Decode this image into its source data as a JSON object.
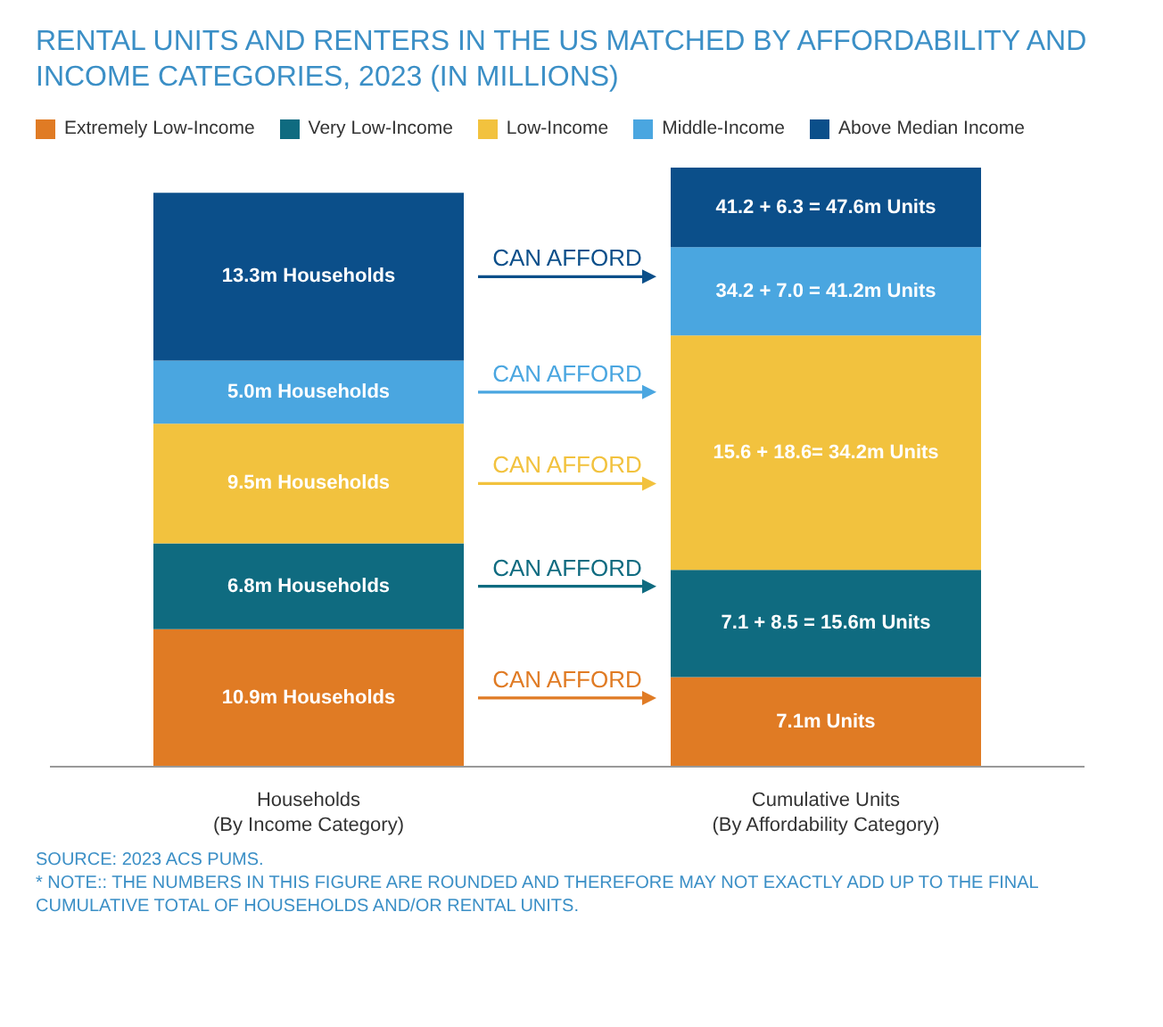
{
  "chart_data": {
    "type": "bar",
    "stacked": true,
    "title": "RENTAL UNITS AND RENTERS IN THE US MATCHED BY AFFORDABILITY AND INCOME CATEGORIES, 2023 (IN MILLIONS)",
    "categories": [
      "Households\n(By Income Category)",
      "Cumulative Units\n(By Affordability Category)"
    ],
    "series": [
      {
        "name": "Extremely Low-Income",
        "color": "#e07b24",
        "values": [
          10.9,
          7.1
        ],
        "value_labels": [
          "10.9m Households",
          "7.1m Units"
        ]
      },
      {
        "name": "Very Low-Income",
        "color": "#0f6b80",
        "values": [
          6.8,
          8.5
        ],
        "value_labels": [
          "6.8m Households",
          "7.1 + 8.5 = 15.6m Units"
        ]
      },
      {
        "name": "Low-Income",
        "color": "#f2c23e",
        "values": [
          9.5,
          18.6
        ],
        "value_labels": [
          "9.5m Households",
          "15.6 + 18.6= 34.2m Units"
        ]
      },
      {
        "name": "Middle-Income",
        "color": "#4aa6e0",
        "values": [
          5.0,
          7.0
        ],
        "value_labels": [
          "5.0m Households",
          "34.2 + 7.0 = 41.2m Units"
        ]
      },
      {
        "name": "Above Median Income",
        "color": "#0b4f8a",
        "values": [
          13.3,
          6.3
        ],
        "value_labels": [
          "13.3m Households",
          "41.2 + 6.3 = 47.6m Units"
        ]
      }
    ],
    "annotations": [
      "CAN AFFORD",
      "CAN AFFORD",
      "CAN AFFORD",
      "CAN AFFORD",
      "CAN AFFORD",
      "SOURCE: 2023 ACS PUMS.",
      "* NOTE:: THE NUMBERS IN THIS FIGURE ARE ROUNDED AND THEREFORE MAY NOT EXACTLY ADD UP TO THE FINAL CUMULATIVE TOTAL OF HOUSEHOLDS AND/OR RENTAL UNITS."
    ],
    "legend": "top"
  }
}
